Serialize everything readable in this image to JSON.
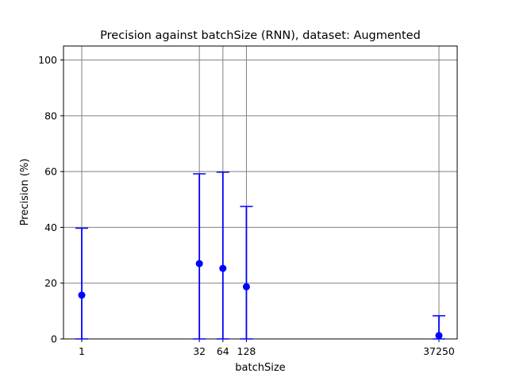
{
  "chart_data": {
    "type": "scatter",
    "title": "Precision against batchSize (RNN), dataset: Augmented",
    "xlabel": "batchSize",
    "ylabel": "Precision (%)",
    "ylim": [
      0,
      105
    ],
    "x_scale": "log",
    "grid": true,
    "x_ticks": [
      "1",
      "32",
      "64",
      "128",
      "37250"
    ],
    "y_ticks": [
      0,
      20,
      40,
      60,
      80,
      100
    ],
    "series": [
      {
        "x": [
          1,
          32,
          64,
          128,
          37250
        ],
        "values": [
          15.7,
          27.0,
          25.3,
          18.7,
          1.2
        ],
        "error_lower": [
          0,
          0,
          0,
          0,
          0
        ],
        "error_upper": [
          39.7,
          59.2,
          59.8,
          47.5,
          8.3
        ]
      }
    ],
    "colors": {
      "series": "#0000ff",
      "grid": "#808080"
    }
  }
}
